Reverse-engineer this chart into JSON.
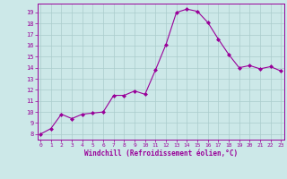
{
  "x": [
    0,
    1,
    2,
    3,
    4,
    5,
    6,
    7,
    8,
    9,
    10,
    11,
    12,
    13,
    14,
    15,
    16,
    17,
    18,
    19,
    20,
    21,
    22,
    23
  ],
  "y": [
    8.0,
    8.5,
    9.8,
    9.4,
    9.8,
    9.9,
    10.0,
    11.5,
    11.5,
    11.9,
    11.6,
    13.8,
    16.1,
    19.0,
    19.3,
    19.1,
    18.1,
    16.6,
    15.2,
    14.0,
    14.2,
    13.9,
    14.1,
    13.7
  ],
  "xlim": [
    -0.3,
    23.3
  ],
  "ylim": [
    7.5,
    19.8
  ],
  "yticks": [
    8,
    9,
    10,
    11,
    12,
    13,
    14,
    15,
    16,
    17,
    18,
    19
  ],
  "xticks": [
    0,
    1,
    2,
    3,
    4,
    5,
    6,
    7,
    8,
    9,
    10,
    11,
    12,
    13,
    14,
    15,
    16,
    17,
    18,
    19,
    20,
    21,
    22,
    23
  ],
  "xlabel": "Windchill (Refroidissement éolien,°C)",
  "line_color": "#990099",
  "marker": "D",
  "marker_size": 2.0,
  "bg_color": "#cce8e8",
  "grid_color": "#aacccc",
  "tick_label_color": "#990099",
  "xlabel_color": "#990099"
}
